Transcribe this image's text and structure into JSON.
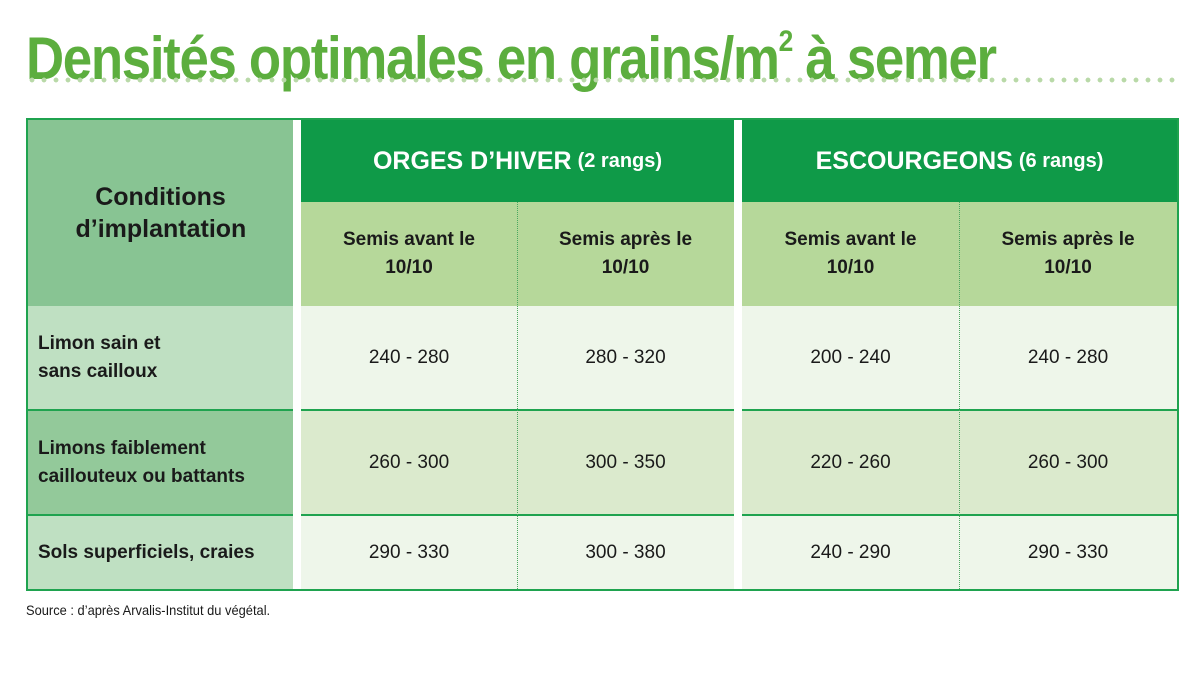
{
  "title": {
    "main": "Densités optimales en grains/m",
    "sup": "2",
    "rest": " à semer"
  },
  "chart_data": {
    "type": "table",
    "header": {
      "conditions": "Conditions d’implantation",
      "groups": [
        {
          "name": "ORGES D’HIVER",
          "note": "(2 rangs)"
        },
        {
          "name": "ESCOURGEONS",
          "note": "(6 rangs)"
        }
      ],
      "subcolumns": [
        "Semis avant le 10/10",
        "Semis après le 10/10",
        "Semis avant le 10/10",
        "Semis après le 10/10"
      ]
    },
    "rows": [
      {
        "label": "Limon sain et sans cailloux",
        "values": [
          "240 - 280",
          "280 - 320",
          "200 - 240",
          "240 - 280"
        ]
      },
      {
        "label": "Limons faiblement caillouteux ou battants",
        "values": [
          "260 - 300",
          "300 - 350",
          "220 - 260",
          "260 - 300"
        ]
      },
      {
        "label": "Sols superficiels, craies",
        "values": [
          "290 - 330",
          "300 - 380",
          "240 - 290",
          "290 - 330"
        ]
      }
    ]
  },
  "source": "Source : d’après Arvalis-Institut du végétal.",
  "colors": {
    "title": "#5cae3e",
    "group_header": "#0f9a48",
    "subheader": "#b6d89a",
    "border": "#1fa34f"
  }
}
